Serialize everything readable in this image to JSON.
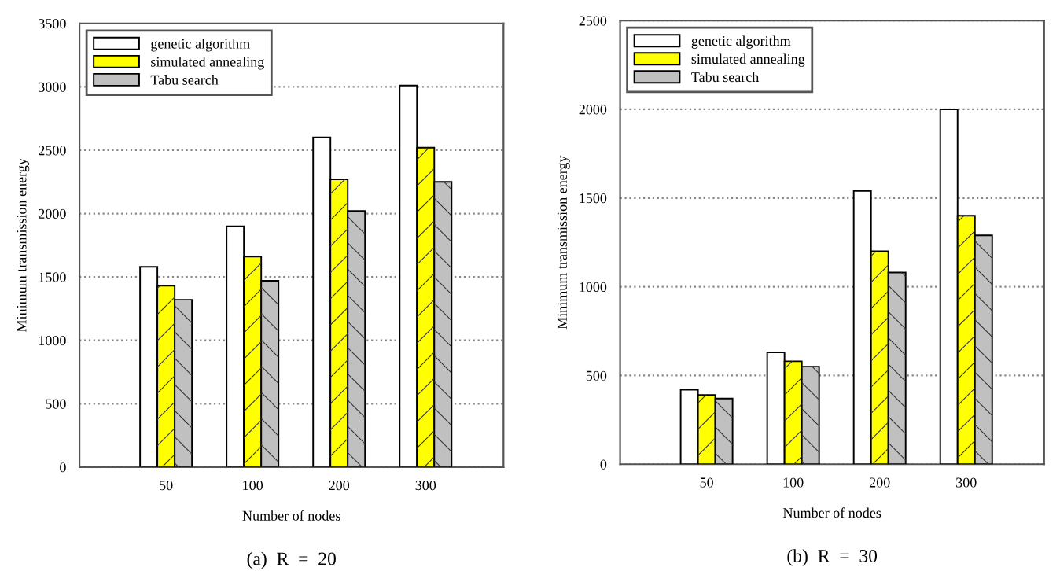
{
  "chart_data": [
    {
      "type": "bar",
      "title": "(a)  R  =  20",
      "xlabel": "Number of nodes",
      "ylabel": "Minimum transmission energy",
      "categories": [
        "50",
        "100",
        "200",
        "300"
      ],
      "series": [
        {
          "name": "genetic algorithm",
          "color": "#ffffff",
          "values": [
            1580,
            1900,
            2600,
            3010
          ]
        },
        {
          "name": "simulated annealing",
          "color": "#ffff00",
          "values": [
            1430,
            1660,
            2270,
            2520
          ]
        },
        {
          "name": "Tabu search",
          "color": "#c0c0c0",
          "values": [
            1320,
            1470,
            2020,
            2250
          ]
        }
      ],
      "ylim": [
        0,
        3500
      ],
      "yticks": [
        0,
        500,
        1000,
        1500,
        2000,
        2500,
        3000,
        3500
      ],
      "grid": "y",
      "legend": "top left"
    },
    {
      "type": "bar",
      "title": "(b)  R  =  30",
      "xlabel": "Number of nodes",
      "ylabel": "Minimum transmission energy",
      "categories": [
        "50",
        "100",
        "200",
        "300"
      ],
      "series": [
        {
          "name": "genetic algorithm",
          "color": "#ffffff",
          "values": [
            420,
            630,
            1540,
            2000
          ]
        },
        {
          "name": "simulated annealing",
          "color": "#ffff00",
          "values": [
            390,
            580,
            1200,
            1400
          ]
        },
        {
          "name": "Tabu search",
          "color": "#c0c0c0",
          "values": [
            370,
            550,
            1080,
            1290
          ]
        }
      ],
      "ylim": [
        0,
        2500
      ],
      "yticks": [
        0,
        500,
        1000,
        1500,
        2000,
        2500
      ],
      "grid": "y",
      "legend": "top left"
    }
  ]
}
